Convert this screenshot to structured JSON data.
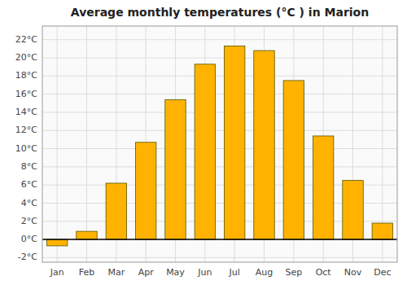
{
  "chart_data": {
    "type": "bar",
    "title": "Average monthly temperatures (°C ) in Marion",
    "categories": [
      "Jan",
      "Feb",
      "Mar",
      "Apr",
      "May",
      "Jun",
      "Jul",
      "Aug",
      "Sep",
      "Oct",
      "Nov",
      "Dec"
    ],
    "values": [
      -0.7,
      0.9,
      6.2,
      10.7,
      15.4,
      19.3,
      21.3,
      20.8,
      17.5,
      11.4,
      6.5,
      1.8
    ],
    "color": "#FFB300",
    "ylim": [
      -2.5,
      23.5
    ],
    "yticks": [
      {
        "value": -2,
        "label": "-2°C"
      },
      {
        "value": 0,
        "label": "0°C"
      },
      {
        "value": 2,
        "label": "2°C"
      },
      {
        "value": 4,
        "label": "4°C"
      },
      {
        "value": 6,
        "label": "6°C"
      },
      {
        "value": 8,
        "label": "8°C"
      },
      {
        "value": 10,
        "label": "10°C"
      },
      {
        "value": 12,
        "label": "12°C"
      },
      {
        "value": 14,
        "label": "14°C"
      },
      {
        "value": 16,
        "label": "16°C"
      },
      {
        "value": 18,
        "label": "18°C"
      },
      {
        "value": 20,
        "label": "20°C"
      },
      {
        "value": 22,
        "label": "22°C"
      }
    ],
    "grid": true
  }
}
